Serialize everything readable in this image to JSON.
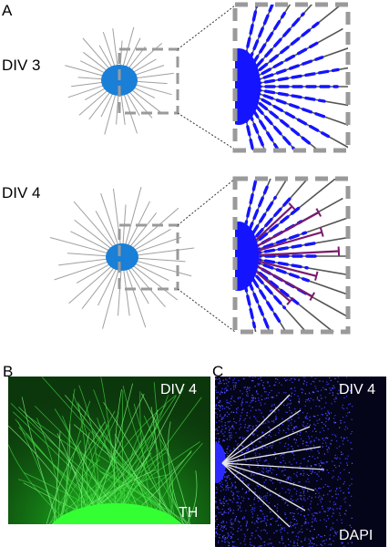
{
  "panel_letters": {
    "a": "A",
    "b": "B",
    "c": "C"
  },
  "panel_a": {
    "top_label": "DIV 3",
    "bottom_label": "DIV 4"
  },
  "panel_b": {
    "stage_label": "DIV 4",
    "stain_label": "TH"
  },
  "panel_c": {
    "stage_label": "DIV 4",
    "stain_label": "DAPI"
  },
  "colors": {
    "soma": "#1a7fd6",
    "neurite": "#a0a0a0",
    "zoom_box": "#9a9a9a",
    "blue_stain": "#1414ff",
    "th_line": "#7a1a6e",
    "th_green": "#22ee22",
    "dapi_background": "#05051a"
  }
}
